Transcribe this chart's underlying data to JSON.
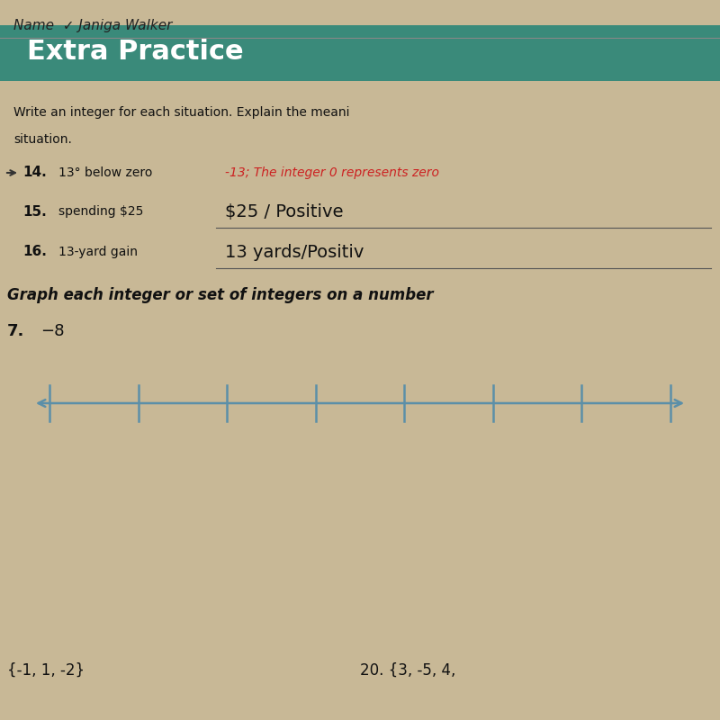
{
  "bg_color": "#c8b896",
  "header_color": "#3a8a7a",
  "header_text": "Extra Practice",
  "header_text_color": "#ffffff",
  "header_font_size": 22,
  "instruction_text": "Write an integer for each situation. Explain the meani",
  "instruction_text2": "situation.",
  "q14_label": "14.",
  "q14_text": "13° below zero",
  "q14_answer": "-13; The integer 0 represents zero",
  "q14_answer_color": "#cc2222",
  "q15_label": "15.",
  "q15_text": "spending $25",
  "q15_answer": "$25 / Positive",
  "q16_label": "16.",
  "q16_text": "13-yard gain",
  "q16_answer": "13 yards/Positiv",
  "graph_instruction": "Graph each integer or set of integers on a number",
  "q17_label": "7.",
  "q17_value": "−8",
  "number_line_color": "#5b8fa8",
  "number_line_ticks": 8,
  "bottom_q19_label": "{-1, 1, -2}",
  "bottom_q20_label": "20. {3, -5, 4,",
  "name_text": "Name  ✓ Janiga Walker"
}
